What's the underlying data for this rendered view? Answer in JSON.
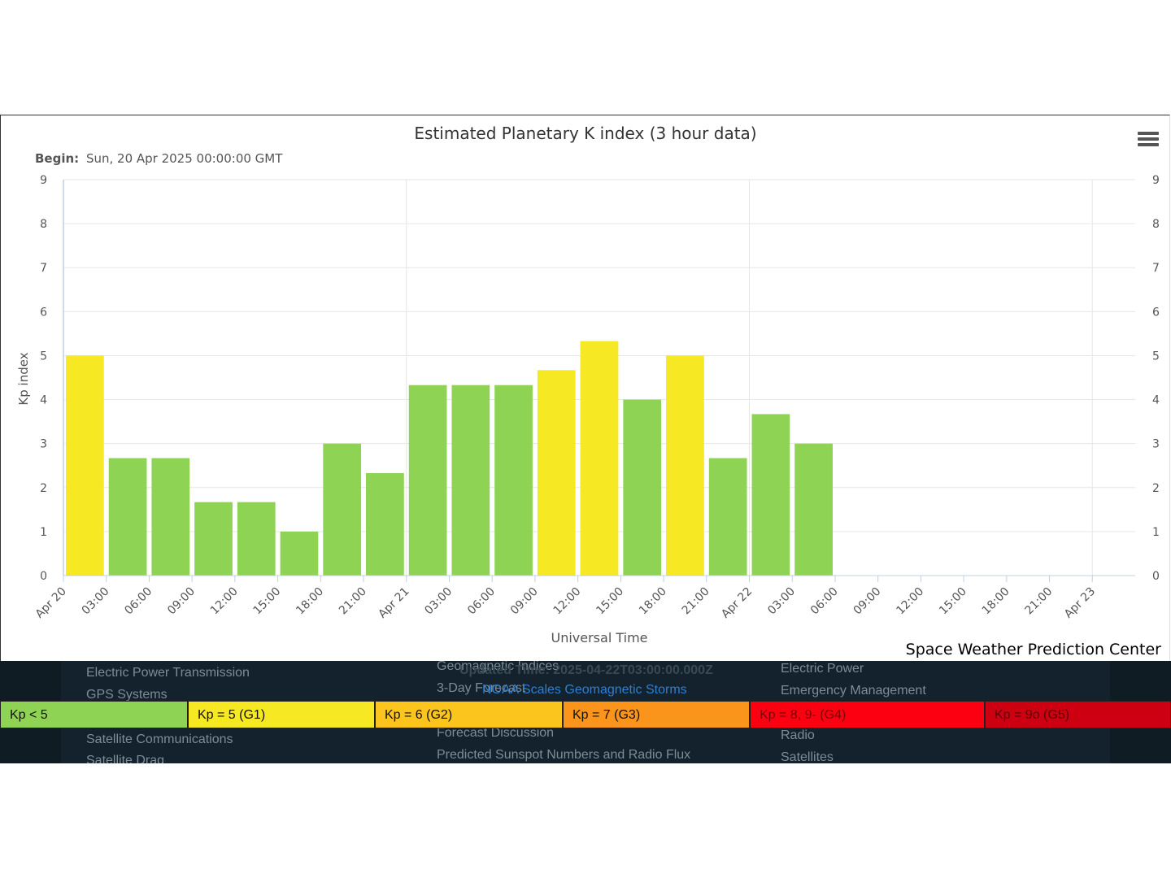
{
  "chart_data": {
    "type": "bar",
    "title": "Estimated Planetary K index (3 hour data)",
    "subtitle_label": "Begin:",
    "subtitle_value": "Sun, 20 Apr 2025 00:00:00 GMT",
    "xlabel": "Universal Time",
    "ylabel": "Kp index",
    "ylim": [
      0,
      9
    ],
    "yticks": [
      "0",
      "1",
      "2",
      "3",
      "4",
      "5",
      "6",
      "7",
      "8",
      "9"
    ],
    "xticks": [
      "Apr 20",
      "03:00",
      "06:00",
      "09:00",
      "12:00",
      "15:00",
      "18:00",
      "21:00",
      "Apr 21",
      "03:00",
      "06:00",
      "09:00",
      "12:00",
      "15:00",
      "18:00",
      "21:00",
      "Apr 22",
      "03:00",
      "06:00",
      "09:00",
      "12:00",
      "15:00",
      "18:00",
      "21:00",
      "Apr 23"
    ],
    "values": [
      5.0,
      2.67,
      2.67,
      1.67,
      1.67,
      1.0,
      3.0,
      2.33,
      4.33,
      4.33,
      4.33,
      4.67,
      5.33,
      4.0,
      5.0,
      2.67,
      3.67,
      3.0
    ],
    "grid": true,
    "colors": {
      "below5": "#8ed354",
      "g1": "#f6e822"
    }
  },
  "credit": "Space Weather Prediction Center",
  "footer": {
    "updated": "Updated Time: 2025-04-22T03:00:00.000Z",
    "scales_link": "NOAA Scales Geomagnetic Storms",
    "ghost_col1": [
      "Electric Power Transmission",
      "GPS Systems",
      "Satellite Communications",
      "Satellite Drag"
    ],
    "ghost_col2": [
      "Geomagnetic Indices",
      "3-Day Forecast",
      "Forecast Discussion",
      "Predicted Sunspot Numbers and Radio Flux"
    ],
    "ghost_col3": [
      "Electric Power",
      "Emergency Management",
      "Radio",
      "Satellites"
    ]
  },
  "legend": [
    {
      "label": "Kp < 5",
      "color": "#8ed354",
      "text_color": "#111111"
    },
    {
      "label": "Kp = 5 (G1)",
      "color": "#f6e822",
      "text_color": "#111111"
    },
    {
      "label": "Kp = 6 (G2)",
      "color": "#fcc51e",
      "text_color": "#111111"
    },
    {
      "label": "Kp = 7 (G3)",
      "color": "#fb941a",
      "text_color": "#111111"
    },
    {
      "label": "Kp = 8, 9- (G4)",
      "color": "#fc0012",
      "text_color": "#7a0008"
    },
    {
      "label": "Kp = 9o (G5)",
      "color": "#cc0010",
      "text_color": "#5a0008"
    }
  ]
}
